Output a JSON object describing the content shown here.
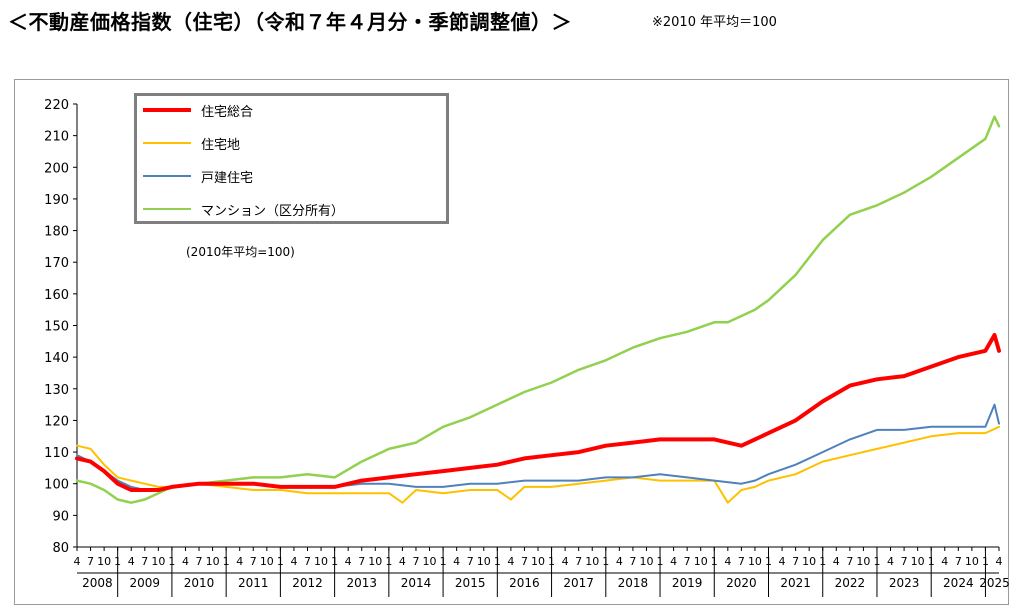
{
  "title": "＜不動産価格指数（住宅）（令和７年４月分・季節調整値）＞",
  "note": "※2010 年平均＝100",
  "chart_data": {
    "type": "line",
    "base_note": "(2010年平均=100)",
    "ylim": [
      80,
      220
    ],
    "yticks": [
      80,
      90,
      100,
      110,
      120,
      130,
      140,
      150,
      160,
      170,
      180,
      190,
      200,
      210,
      220
    ],
    "grid": false,
    "legend_position": "top-left",
    "x_start": "2008-04",
    "x_end": "2025-04",
    "x_month_labels": [
      "4",
      "7",
      "10",
      "1"
    ],
    "years": [
      "2008",
      "2009",
      "2010",
      "2011",
      "2012",
      "2013",
      "2014",
      "2015",
      "2016",
      "2017",
      "2018",
      "2019",
      "2020",
      "2021",
      "2022",
      "2023",
      "2024",
      "2025"
    ],
    "series": [
      {
        "name": "住宅総合",
        "color": "#ff0000",
        "width": 4,
        "points": [
          [
            "2008-04",
            108
          ],
          [
            "2008-07",
            107
          ],
          [
            "2008-10",
            104
          ],
          [
            "2009-01",
            100
          ],
          [
            "2009-04",
            98
          ],
          [
            "2009-07",
            98
          ],
          [
            "2009-10",
            98
          ],
          [
            "2010-01",
            99
          ],
          [
            "2010-07",
            100
          ],
          [
            "2011-01",
            100
          ],
          [
            "2011-07",
            100
          ],
          [
            "2012-01",
            99
          ],
          [
            "2012-07",
            99
          ],
          [
            "2013-01",
            99
          ],
          [
            "2013-07",
            101
          ],
          [
            "2014-01",
            102
          ],
          [
            "2014-07",
            103
          ],
          [
            "2015-01",
            104
          ],
          [
            "2015-07",
            105
          ],
          [
            "2016-01",
            106
          ],
          [
            "2016-07",
            108
          ],
          [
            "2017-01",
            109
          ],
          [
            "2017-07",
            110
          ],
          [
            "2018-01",
            112
          ],
          [
            "2018-07",
            113
          ],
          [
            "2019-01",
            114
          ],
          [
            "2019-07",
            114
          ],
          [
            "2020-01",
            114
          ],
          [
            "2020-04",
            113
          ],
          [
            "2020-07",
            112
          ],
          [
            "2020-10",
            114
          ],
          [
            "2021-01",
            116
          ],
          [
            "2021-07",
            120
          ],
          [
            "2022-01",
            126
          ],
          [
            "2022-07",
            131
          ],
          [
            "2023-01",
            133
          ],
          [
            "2023-07",
            134
          ],
          [
            "2024-01",
            137
          ],
          [
            "2024-07",
            140
          ],
          [
            "2025-01",
            142
          ],
          [
            "2025-03",
            147
          ],
          [
            "2025-04",
            142
          ]
        ]
      },
      {
        "name": "住宅地",
        "color": "#ffc000",
        "width": 2,
        "points": [
          [
            "2008-04",
            112
          ],
          [
            "2008-07",
            111
          ],
          [
            "2008-10",
            106
          ],
          [
            "2009-01",
            102
          ],
          [
            "2009-04",
            101
          ],
          [
            "2009-07",
            100
          ],
          [
            "2009-10",
            99
          ],
          [
            "2010-01",
            99
          ],
          [
            "2010-07",
            100
          ],
          [
            "2011-01",
            99
          ],
          [
            "2011-07",
            98
          ],
          [
            "2012-01",
            98
          ],
          [
            "2012-07",
            97
          ],
          [
            "2013-01",
            97
          ],
          [
            "2013-07",
            97
          ],
          [
            "2014-01",
            97
          ],
          [
            "2014-04",
            94
          ],
          [
            "2014-07",
            98
          ],
          [
            "2015-01",
            97
          ],
          [
            "2015-07",
            98
          ],
          [
            "2016-01",
            98
          ],
          [
            "2016-04",
            95
          ],
          [
            "2016-07",
            99
          ],
          [
            "2017-01",
            99
          ],
          [
            "2017-07",
            100
          ],
          [
            "2018-01",
            101
          ],
          [
            "2018-07",
            102
          ],
          [
            "2019-01",
            101
          ],
          [
            "2019-07",
            101
          ],
          [
            "2020-01",
            101
          ],
          [
            "2020-04",
            94
          ],
          [
            "2020-07",
            98
          ],
          [
            "2020-10",
            99
          ],
          [
            "2021-01",
            101
          ],
          [
            "2021-07",
            103
          ],
          [
            "2022-01",
            107
          ],
          [
            "2022-07",
            109
          ],
          [
            "2023-01",
            111
          ],
          [
            "2023-07",
            113
          ],
          [
            "2024-01",
            115
          ],
          [
            "2024-07",
            116
          ],
          [
            "2025-01",
            116
          ],
          [
            "2025-04",
            118
          ]
        ]
      },
      {
        "name": "戸建住宅",
        "color": "#4f81bd",
        "width": 2,
        "points": [
          [
            "2008-04",
            109
          ],
          [
            "2008-07",
            107
          ],
          [
            "2008-10",
            104
          ],
          [
            "2009-01",
            101
          ],
          [
            "2009-04",
            99
          ],
          [
            "2009-07",
            98
          ],
          [
            "2009-10",
            98
          ],
          [
            "2010-01",
            99
          ],
          [
            "2010-07",
            100
          ],
          [
            "2011-01",
            100
          ],
          [
            "2011-07",
            100
          ],
          [
            "2012-01",
            99
          ],
          [
            "2012-07",
            99
          ],
          [
            "2013-01",
            99
          ],
          [
            "2013-07",
            100
          ],
          [
            "2014-01",
            100
          ],
          [
            "2014-07",
            99
          ],
          [
            "2015-01",
            99
          ],
          [
            "2015-07",
            100
          ],
          [
            "2016-01",
            100
          ],
          [
            "2016-07",
            101
          ],
          [
            "2017-01",
            101
          ],
          [
            "2017-07",
            101
          ],
          [
            "2018-01",
            102
          ],
          [
            "2018-07",
            102
          ],
          [
            "2019-01",
            103
          ],
          [
            "2019-07",
            102
          ],
          [
            "2020-01",
            101
          ],
          [
            "2020-07",
            100
          ],
          [
            "2020-10",
            101
          ],
          [
            "2021-01",
            103
          ],
          [
            "2021-07",
            106
          ],
          [
            "2022-01",
            110
          ],
          [
            "2022-07",
            114
          ],
          [
            "2023-01",
            117
          ],
          [
            "2023-07",
            117
          ],
          [
            "2024-01",
            118
          ],
          [
            "2024-07",
            118
          ],
          [
            "2025-01",
            118
          ],
          [
            "2025-03",
            125
          ],
          [
            "2025-04",
            119
          ]
        ]
      },
      {
        "name": "マンション（区分所有）",
        "color": "#92d050",
        "width": 2.5,
        "points": [
          [
            "2008-04",
            101
          ],
          [
            "2008-07",
            100
          ],
          [
            "2008-10",
            98
          ],
          [
            "2009-01",
            95
          ],
          [
            "2009-04",
            94
          ],
          [
            "2009-07",
            95
          ],
          [
            "2009-10",
            97
          ],
          [
            "2010-01",
            99
          ],
          [
            "2010-07",
            100
          ],
          [
            "2011-01",
            101
          ],
          [
            "2011-07",
            102
          ],
          [
            "2012-01",
            102
          ],
          [
            "2012-07",
            103
          ],
          [
            "2013-01",
            102
          ],
          [
            "2013-07",
            107
          ],
          [
            "2014-01",
            111
          ],
          [
            "2014-07",
            113
          ],
          [
            "2015-01",
            118
          ],
          [
            "2015-07",
            121
          ],
          [
            "2016-01",
            125
          ],
          [
            "2016-07",
            129
          ],
          [
            "2017-01",
            132
          ],
          [
            "2017-07",
            136
          ],
          [
            "2018-01",
            139
          ],
          [
            "2018-07",
            143
          ],
          [
            "2019-01",
            146
          ],
          [
            "2019-07",
            148
          ],
          [
            "2020-01",
            151
          ],
          [
            "2020-04",
            151
          ],
          [
            "2020-07",
            153
          ],
          [
            "2020-10",
            155
          ],
          [
            "2021-01",
            158
          ],
          [
            "2021-07",
            166
          ],
          [
            "2022-01",
            177
          ],
          [
            "2022-07",
            185
          ],
          [
            "2023-01",
            188
          ],
          [
            "2023-07",
            192
          ],
          [
            "2024-01",
            197
          ],
          [
            "2024-07",
            203
          ],
          [
            "2025-01",
            209
          ],
          [
            "2025-03",
            216
          ],
          [
            "2025-04",
            213
          ]
        ]
      }
    ]
  }
}
